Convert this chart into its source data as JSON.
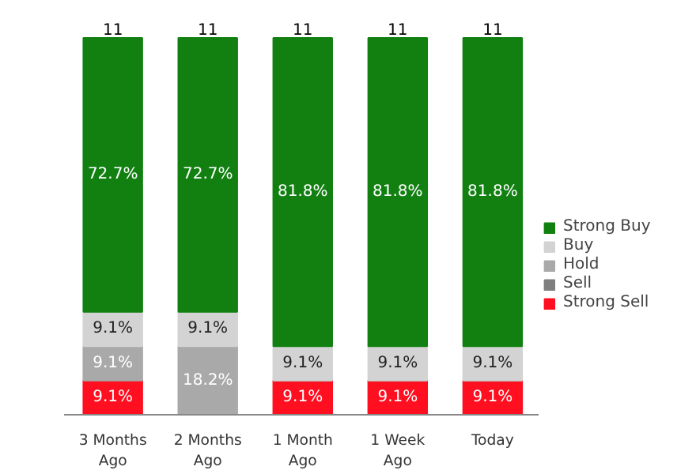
{
  "chart_data": {
    "type": "bar",
    "stacked": true,
    "categories": [
      "3 Months\nAgo",
      "2 Months\nAgo",
      "1 Month\nAgo",
      "1 Week\nAgo",
      "Today"
    ],
    "series": [
      {
        "name": "Strong Sell",
        "color": "#ff0f1f",
        "values": [
          9.1,
          0,
          9.1,
          9.1,
          9.1
        ],
        "value_labels": [
          "9.1%",
          null,
          "9.1%",
          "9.1%",
          "9.1%"
        ]
      },
      {
        "name": "Sell",
        "color": "#7f7f7f",
        "values": [
          0,
          0,
          0,
          0,
          0
        ],
        "value_labels": [
          null,
          null,
          null,
          null,
          null
        ]
      },
      {
        "name": "Hold",
        "color": "#a9a9a9",
        "values": [
          9.1,
          18.2,
          0,
          0,
          0
        ],
        "value_labels": [
          "9.1%",
          "18.2%",
          null,
          null,
          null
        ]
      },
      {
        "name": "Buy",
        "color": "#d3d3d3",
        "values": [
          9.1,
          9.1,
          9.1,
          9.1,
          9.1
        ],
        "value_labels": [
          "9.1%",
          "9.1%",
          "9.1%",
          "9.1%",
          "9.1%"
        ]
      },
      {
        "name": "Strong Buy",
        "color": "#118011",
        "values": [
          72.7,
          72.7,
          81.8,
          81.8,
          81.8
        ],
        "value_labels": [
          "72.7%",
          "72.7%",
          "81.8%",
          "81.8%",
          "81.8%"
        ]
      }
    ],
    "annotations": [
      {
        "text": "11",
        "x": "3 Months\nAgo",
        "y": 100
      },
      {
        "text": "11",
        "x": "2 Months\nAgo",
        "y": 100
      },
      {
        "text": "11",
        "x": "1 Month\nAgo",
        "y": 100
      },
      {
        "text": "11",
        "x": "1 Week\nAgo",
        "y": 100
      },
      {
        "text": "11",
        "x": "Today",
        "y": 100
      }
    ],
    "legend": "right"
  }
}
